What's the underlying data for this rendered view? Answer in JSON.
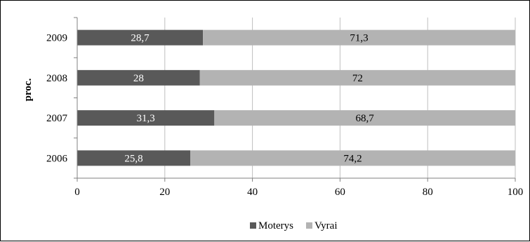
{
  "chart_data": {
    "type": "bar",
    "orientation": "horizontal",
    "stacked": true,
    "categories": [
      "2006",
      "2007",
      "2008",
      "2009"
    ],
    "series": [
      {
        "name": "Moterys",
        "values": [
          25.8,
          31.3,
          28,
          28.7
        ],
        "labels": [
          "25,8",
          "31,3",
          "28",
          "28,7"
        ],
        "color": "#595959",
        "label_color": "#ffffff"
      },
      {
        "name": "Vyrai",
        "values": [
          74.2,
          68.7,
          72,
          71.3
        ],
        "labels": [
          "74,2",
          "68,7",
          "72",
          "71,3"
        ],
        "color": "#b3b3b3",
        "label_color": "#000000"
      }
    ],
    "title": "",
    "xlabel": "",
    "ylabel": "proc.",
    "xlim": [
      0,
      100
    ],
    "xticks": [
      0,
      20,
      40,
      60,
      80,
      100
    ],
    "grid": true,
    "legend_position": "bottom"
  }
}
